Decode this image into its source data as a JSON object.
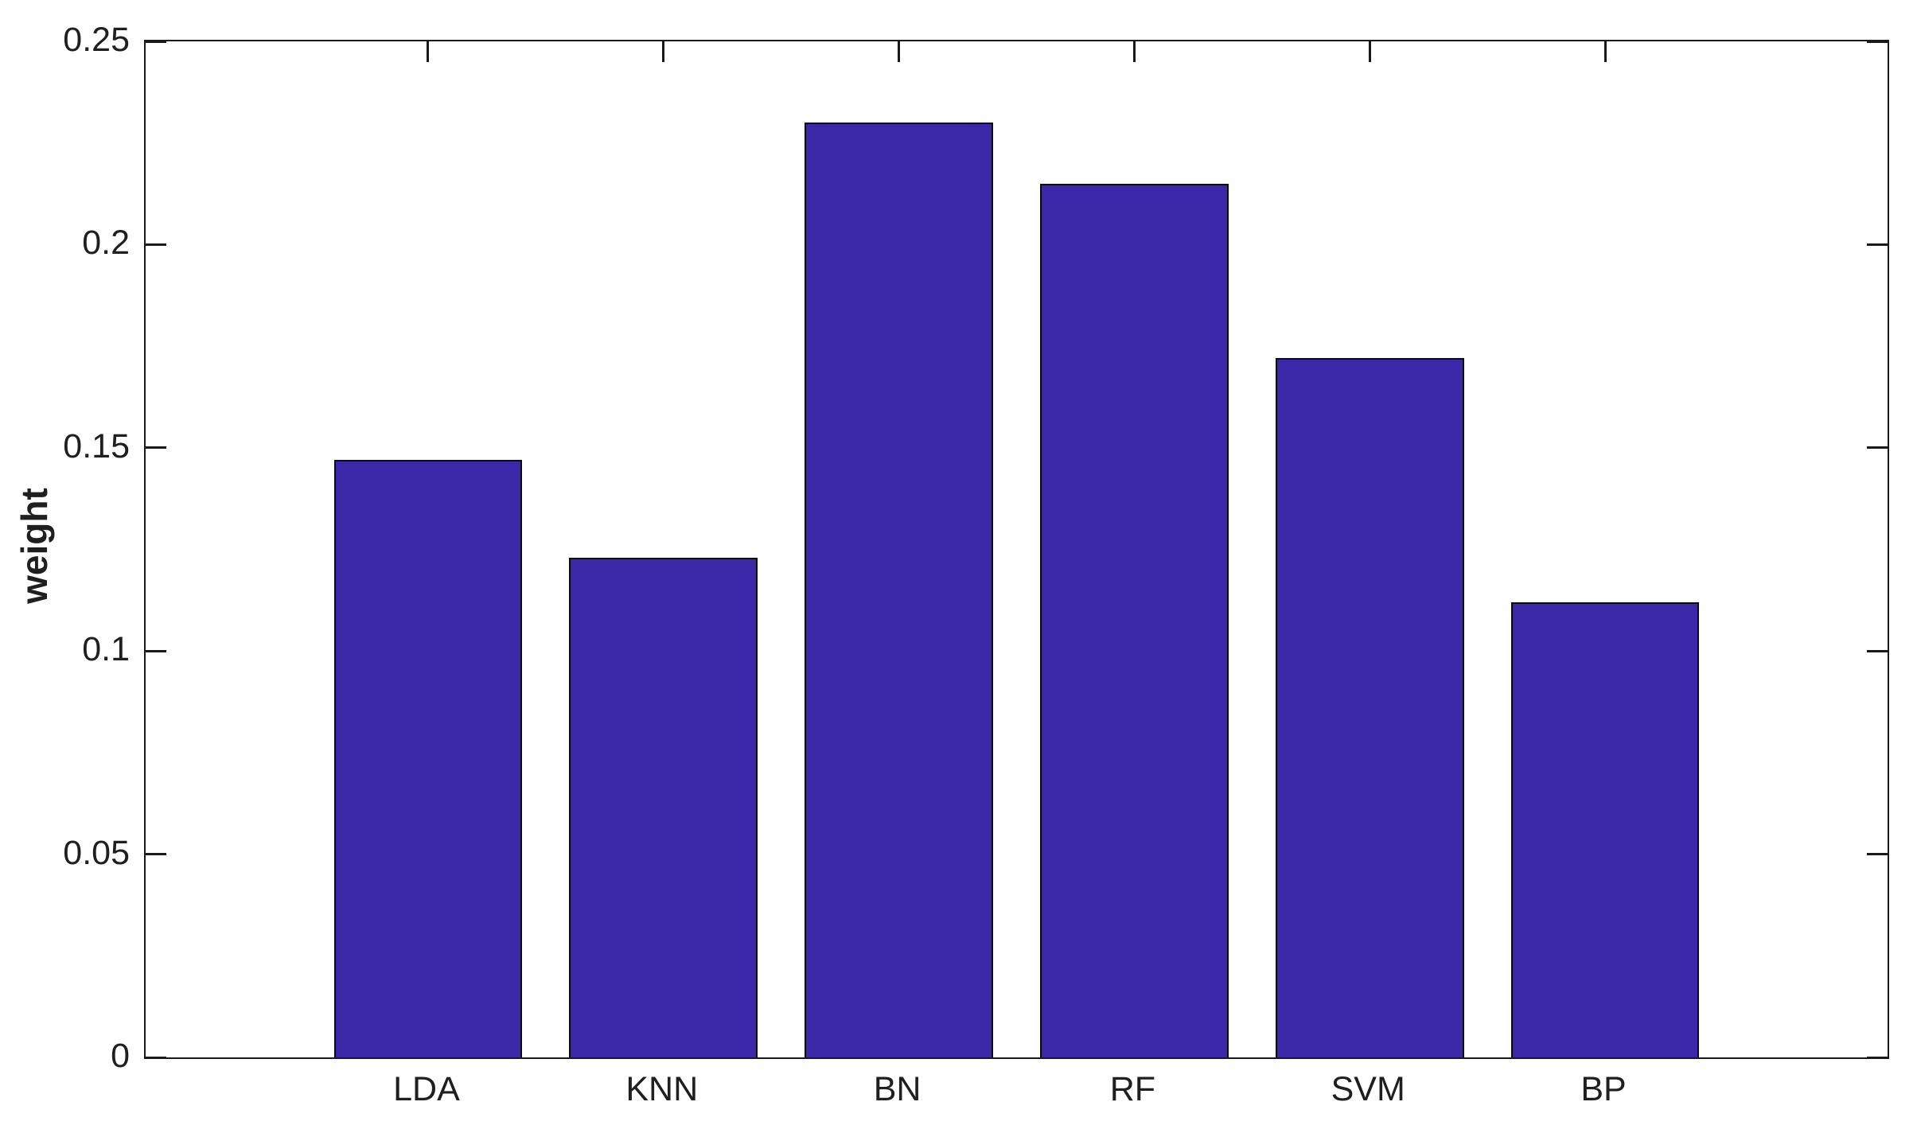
{
  "chart_data": {
    "type": "bar",
    "categories": [
      "LDA",
      "KNN",
      "BN",
      "RF",
      "SVM",
      "BP"
    ],
    "values": [
      0.147,
      0.123,
      0.23,
      0.215,
      0.172,
      0.112
    ],
    "title": "",
    "xlabel": "",
    "ylabel": "weight",
    "ylim": [
      0,
      0.25
    ],
    "yticks": [
      0,
      0.05,
      0.1,
      0.15,
      0.2,
      0.25
    ],
    "ytick_labels": [
      "0",
      "0.05",
      "0.1",
      "0.15",
      "0.2",
      "0.25"
    ],
    "grid": false,
    "legend": "none",
    "box": true,
    "tick_direction": "in",
    "bar_color": "#3B28A8",
    "bar_edge_color": "#0a0a14",
    "axis_color": "#1a1a1a",
    "tick_label_color": "#1f1f1f",
    "background_color": "#ffffff",
    "bar_width_fraction": 0.8
  }
}
